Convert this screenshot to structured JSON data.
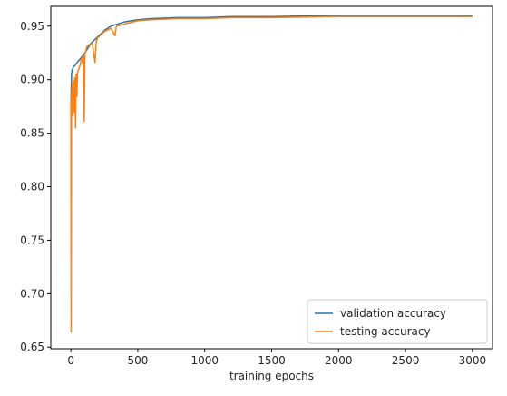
{
  "chart_data": {
    "type": "line",
    "title": "",
    "xlabel": "training epochs",
    "ylabel": "",
    "xlim": [
      -150,
      3150
    ],
    "ylim": [
      0.6485,
      0.9685
    ],
    "xticks": [
      0,
      500,
      1000,
      1500,
      2000,
      2500,
      3000
    ],
    "xtick_labels": [
      "0",
      "500",
      "1000",
      "1500",
      "2000",
      "2500",
      "3000"
    ],
    "yticks": [
      0.65,
      0.7,
      0.75,
      0.8,
      0.85,
      0.9,
      0.95
    ],
    "ytick_labels": [
      "0.65",
      "0.70",
      "0.75",
      "0.80",
      "0.85",
      "0.90",
      "0.95"
    ],
    "grid": false,
    "legend_position": "lower right",
    "series": [
      {
        "name": "validation accuracy",
        "color": "#1f77b4",
        "x": [
          0,
          5,
          10,
          20,
          30,
          40,
          60,
          80,
          100,
          120,
          150,
          200,
          250,
          300,
          400,
          500,
          600,
          800,
          1000,
          1200,
          1500,
          2000,
          2500,
          3000
        ],
        "y": [
          0.874,
          0.905,
          0.909,
          0.912,
          0.913,
          0.915,
          0.918,
          0.921,
          0.924,
          0.928,
          0.934,
          0.94,
          0.946,
          0.95,
          0.954,
          0.956,
          0.957,
          0.958,
          0.958,
          0.959,
          0.959,
          0.96,
          0.96,
          0.96
        ]
      },
      {
        "name": "testing accuracy",
        "color": "#ff7f0e",
        "x": [
          0,
          2,
          5,
          8,
          10,
          15,
          20,
          25,
          30,
          35,
          40,
          45,
          50,
          60,
          70,
          80,
          90,
          95,
          100,
          105,
          110,
          120,
          140,
          160,
          180,
          190,
          200,
          250,
          300,
          330,
          340,
          400,
          500,
          600,
          800,
          1000,
          1200,
          1500,
          2000,
          2500,
          3000
        ],
        "y": [
          0.88,
          0.664,
          0.887,
          0.89,
          0.897,
          0.866,
          0.899,
          0.87,
          0.902,
          0.855,
          0.905,
          0.884,
          0.907,
          0.91,
          0.914,
          0.92,
          0.915,
          0.922,
          0.861,
          0.924,
          0.926,
          0.931,
          0.933,
          0.934,
          0.916,
          0.936,
          0.939,
          0.945,
          0.948,
          0.941,
          0.95,
          0.952,
          0.955,
          0.956,
          0.957,
          0.957,
          0.958,
          0.958,
          0.959,
          0.959,
          0.959
        ]
      }
    ]
  }
}
